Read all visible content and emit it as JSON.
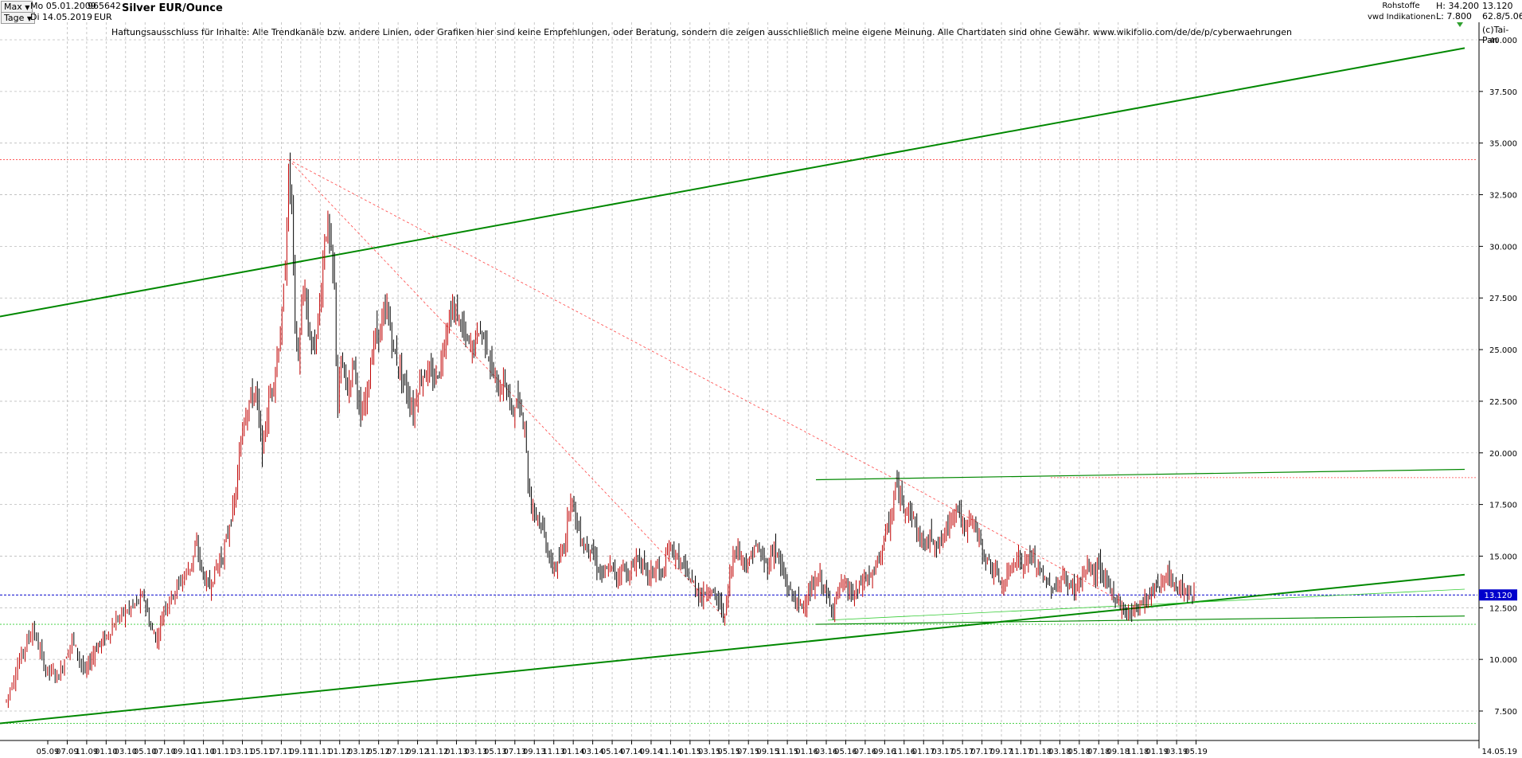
{
  "header": {
    "period_select": "Max",
    "interval_select": "Tage",
    "date_from": "Mo 05.01.2009",
    "date_to": "Di 14.05.2019",
    "code": "965642",
    "currency": "EUR",
    "title": "Silver EUR/Ounce",
    "category": "Rohstoffe",
    "source": "vwd Indikationen",
    "high": "H: 34.200",
    "low": "L: 7.800",
    "last": "13.120",
    "change": "62.8/5.060",
    "copyright": "(c)Tai-Pan"
  },
  "disclaimer": "Haftungsausschluss für Inhalte: Alle Trendkanäle bzw. andere Linien, oder Grafiken hier sind keine Empfehlungen, oder Beratung, sondern die zeigen ausschließlich meine eigene Meinung. Alle Chartdaten sind ohne Gewähr.  www.wikifolio.com/de/de/p/cyberwaehrungen",
  "colors": {
    "candle": "#000000",
    "candle_up": "#c00000",
    "trend": "#008800",
    "light_trend": "#33cc33",
    "red_dotted": "#ff4444",
    "current": "#0000cc",
    "grid": "#bbbbbb"
  },
  "chart_data": {
    "type": "line",
    "title": "Silver EUR/Ounce",
    "ylim": [
      6.5,
      41
    ],
    "yticks": [
      "7.500",
      "10.000",
      "12.500",
      "15.000",
      "17.500",
      "20.000",
      "22.500",
      "25.000",
      "27.500",
      "30.000",
      "32.500",
      "35.000",
      "37.500",
      "40.000"
    ],
    "xticks": [
      "05.09",
      "07.09",
      "11.09",
      "01.10",
      "03.10",
      "05.10",
      "07.10",
      "09.10",
      "11.10",
      "01.11",
      "03.11",
      "05.11",
      "07.11",
      "09.11",
      "11.11",
      "01.12",
      "03.12",
      "05.12",
      "07.12",
      "09.12",
      "11.12",
      "01.13",
      "03.13",
      "05.13",
      "07.13",
      "09.13",
      "11.13",
      "01.14",
      "03.14",
      "05.14",
      "07.14",
      "09.14",
      "11.14",
      "01.15",
      "03.15",
      "05.15",
      "07.15",
      "09.15",
      "11.15",
      "01.16",
      "03.16",
      "05.16",
      "07.16",
      "09.16",
      "11.16",
      "01.17",
      "03.17",
      "05.17",
      "07.17",
      "09.17",
      "11.17",
      "01.18",
      "03.18",
      "05.18",
      "07.18",
      "09.18",
      "11.18",
      "01.19",
      "03.19",
      "05.19"
    ],
    "x_end_label": "14.05.19",
    "current_value": 13.12,
    "current_label": "13.120",
    "series": [
      {
        "values": [
          [
            0,
            8.0
          ],
          [
            4,
            10.0
          ],
          [
            8,
            11.5
          ],
          [
            12,
            9.5
          ],
          [
            16,
            9.2
          ],
          [
            20,
            11.0
          ],
          [
            24,
            9.3
          ],
          [
            27,
            10.5
          ],
          [
            30,
            11.0
          ],
          [
            34,
            12.0
          ],
          [
            38,
            12.5
          ],
          [
            42,
            13.0
          ],
          [
            44,
            11.5
          ],
          [
            46,
            11.0
          ],
          [
            48,
            12.5
          ],
          [
            52,
            13.5
          ],
          [
            56,
            14.5
          ],
          [
            58,
            15.5
          ],
          [
            60,
            14.0
          ],
          [
            62,
            13.5
          ],
          [
            64,
            14.5
          ],
          [
            66,
            15.0
          ],
          [
            68,
            16.5
          ],
          [
            70,
            18.0
          ],
          [
            72,
            21.5
          ],
          [
            74,
            22.5
          ],
          [
            76,
            23.0
          ],
          [
            78,
            20.0
          ],
          [
            80,
            22.5
          ],
          [
            82,
            24.0
          ],
          [
            84,
            26.5
          ],
          [
            85,
            29.0
          ],
          [
            86,
            33.5
          ],
          [
            87,
            32.0
          ],
          [
            88,
            26.0
          ],
          [
            89,
            24.5
          ],
          [
            90,
            27.0
          ],
          [
            91,
            28.0
          ],
          [
            92,
            26.0
          ],
          [
            94,
            25.0
          ],
          [
            96,
            28.0
          ],
          [
            97,
            30.5
          ],
          [
            98,
            31.0
          ],
          [
            99,
            29.5
          ],
          [
            100,
            28.0
          ],
          [
            101,
            22.0
          ],
          [
            102,
            24.5
          ],
          [
            104,
            23.0
          ],
          [
            106,
            24.5
          ],
          [
            108,
            21.5
          ],
          [
            110,
            23.0
          ],
          [
            112,
            25.5
          ],
          [
            114,
            26.0
          ],
          [
            116,
            27.0
          ],
          [
            118,
            25.0
          ],
          [
            120,
            24.0
          ],
          [
            122,
            23.0
          ],
          [
            124,
            22.0
          ],
          [
            126,
            23.5
          ],
          [
            128,
            24.0
          ],
          [
            130,
            23.5
          ],
          [
            132,
            24.0
          ],
          [
            134,
            26.0
          ],
          [
            136,
            27.0
          ],
          [
            138,
            26.5
          ],
          [
            140,
            25.5
          ],
          [
            142,
            25.0
          ],
          [
            144,
            26.0
          ],
          [
            146,
            25.5
          ],
          [
            148,
            24.0
          ],
          [
            150,
            23.0
          ],
          [
            152,
            23.5
          ],
          [
            154,
            22.0
          ],
          [
            156,
            22.5
          ],
          [
            158,
            21.5
          ],
          [
            159,
            18.5
          ],
          [
            160,
            17.5
          ],
          [
            162,
            17.0
          ],
          [
            164,
            16.0
          ],
          [
            166,
            14.5
          ],
          [
            168,
            14.5
          ],
          [
            170,
            15.5
          ],
          [
            172,
            18.0
          ],
          [
            174,
            16.5
          ],
          [
            176,
            15.5
          ],
          [
            178,
            15.5
          ],
          [
            180,
            14.5
          ],
          [
            182,
            14.0
          ],
          [
            184,
            14.5
          ],
          [
            186,
            14.0
          ],
          [
            188,
            14.5
          ],
          [
            190,
            14.0
          ],
          [
            192,
            15.0
          ],
          [
            194,
            14.5
          ],
          [
            196,
            14.0
          ],
          [
            198,
            14.5
          ],
          [
            200,
            14.0
          ],
          [
            202,
            15.5
          ],
          [
            204,
            15.0
          ],
          [
            206,
            14.5
          ],
          [
            208,
            14.0
          ],
          [
            210,
            13.5
          ],
          [
            212,
            13.0
          ],
          [
            214,
            13.5
          ],
          [
            216,
            13.0
          ],
          [
            218,
            12.5
          ],
          [
            219,
            12.0
          ],
          [
            220,
            13.5
          ],
          [
            222,
            15.5
          ],
          [
            224,
            15.0
          ],
          [
            226,
            14.5
          ],
          [
            228,
            15.5
          ],
          [
            230,
            15.0
          ],
          [
            232,
            14.5
          ],
          [
            234,
            15.5
          ],
          [
            236,
            14.5
          ],
          [
            238,
            13.5
          ],
          [
            240,
            13.0
          ],
          [
            242,
            12.5
          ],
          [
            244,
            13.0
          ],
          [
            246,
            13.5
          ],
          [
            248,
            14.0
          ],
          [
            250,
            13.0
          ],
          [
            252,
            12.5
          ],
          [
            254,
            13.5
          ],
          [
            256,
            13.5
          ],
          [
            258,
            13.0
          ],
          [
            260,
            13.5
          ],
          [
            262,
            14.0
          ],
          [
            264,
            14.0
          ],
          [
            266,
            15.0
          ],
          [
            268,
            16.0
          ],
          [
            270,
            17.0
          ],
          [
            271,
            18.5
          ],
          [
            272,
            18.0
          ],
          [
            274,
            17.5
          ],
          [
            276,
            17.0
          ],
          [
            278,
            16.0
          ],
          [
            280,
            15.5
          ],
          [
            282,
            16.0
          ],
          [
            284,
            15.5
          ],
          [
            286,
            16.0
          ],
          [
            288,
            17.0
          ],
          [
            290,
            17.5
          ],
          [
            292,
            16.0
          ],
          [
            294,
            17.0
          ],
          [
            296,
            16.0
          ],
          [
            298,
            15.0
          ],
          [
            300,
            14.5
          ],
          [
            302,
            14.0
          ],
          [
            304,
            13.5
          ],
          [
            306,
            14.5
          ],
          [
            308,
            15.0
          ],
          [
            310,
            14.5
          ],
          [
            312,
            15.0
          ],
          [
            314,
            14.5
          ],
          [
            316,
            14.0
          ],
          [
            318,
            13.5
          ],
          [
            320,
            13.5
          ],
          [
            322,
            14.0
          ],
          [
            324,
            13.5
          ],
          [
            326,
            13.5
          ],
          [
            328,
            14.0
          ],
          [
            330,
            14.5
          ],
          [
            332,
            14.0
          ],
          [
            333,
            14.8
          ],
          [
            334,
            14.0
          ],
          [
            336,
            13.5
          ],
          [
            338,
            13.0
          ],
          [
            340,
            12.5
          ],
          [
            342,
            12.2
          ],
          [
            344,
            12.5
          ],
          [
            346,
            12.8
          ],
          [
            348,
            13.0
          ],
          [
            350,
            13.5
          ],
          [
            352,
            13.8
          ],
          [
            354,
            14.0
          ],
          [
            356,
            13.5
          ],
          [
            358,
            13.5
          ],
          [
            360,
            13.3
          ],
          [
            362,
            13.1
          ]
        ]
      }
    ]
  }
}
